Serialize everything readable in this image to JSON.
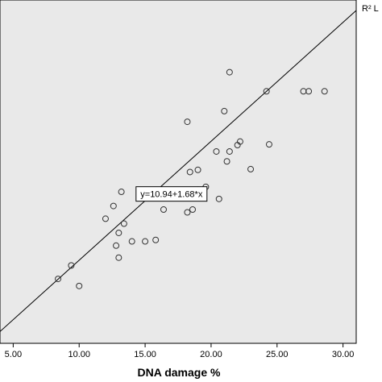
{
  "chart_data": {
    "type": "scatter",
    "title": "",
    "xlabel": "DNA damage %",
    "ylabel": "",
    "xlim": [
      4.0,
      31.0
    ],
    "x_ticks": [
      "5.00",
      "10.00",
      "15.00",
      "20.00",
      "25.00",
      "30.00"
    ],
    "x_tick_values": [
      5,
      10,
      15,
      20,
      25,
      30
    ],
    "ylim": [
      16.0,
      64.5
    ],
    "grid": false,
    "plot_background": "#e9e9e9",
    "marker_color": "#333333",
    "fit_line": {
      "intercept": 10.94,
      "slope": 1.68,
      "equation_label": "y=10.94+1.68*x",
      "label_anchor": [
        17.0,
        37.1
      ]
    },
    "corner_label": "R² L",
    "points": [
      {
        "x": 8.4,
        "y": 25.1
      },
      {
        "x": 9.4,
        "y": 27.0
      },
      {
        "x": 10.0,
        "y": 24.1
      },
      {
        "x": 12.0,
        "y": 33.6
      },
      {
        "x": 12.6,
        "y": 35.4
      },
      {
        "x": 12.8,
        "y": 29.8
      },
      {
        "x": 13.0,
        "y": 31.6
      },
      {
        "x": 13.0,
        "y": 28.1
      },
      {
        "x": 13.2,
        "y": 37.4
      },
      {
        "x": 13.4,
        "y": 32.9
      },
      {
        "x": 14.0,
        "y": 30.4
      },
      {
        "x": 15.0,
        "y": 30.4
      },
      {
        "x": 15.8,
        "y": 30.6
      },
      {
        "x": 16.4,
        "y": 34.9
      },
      {
        "x": 18.2,
        "y": 47.3
      },
      {
        "x": 18.2,
        "y": 34.5
      },
      {
        "x": 18.4,
        "y": 40.2
      },
      {
        "x": 18.6,
        "y": 34.9
      },
      {
        "x": 19.0,
        "y": 37.7
      },
      {
        "x": 19.0,
        "y": 40.5
      },
      {
        "x": 19.6,
        "y": 38.1
      },
      {
        "x": 20.4,
        "y": 43.1
      },
      {
        "x": 20.6,
        "y": 36.4
      },
      {
        "x": 21.0,
        "y": 48.8
      },
      {
        "x": 21.2,
        "y": 41.7
      },
      {
        "x": 21.4,
        "y": 43.1
      },
      {
        "x": 21.4,
        "y": 54.3
      },
      {
        "x": 22.0,
        "y": 44.0
      },
      {
        "x": 22.2,
        "y": 44.5
      },
      {
        "x": 23.0,
        "y": 40.6
      },
      {
        "x": 24.2,
        "y": 51.6
      },
      {
        "x": 24.4,
        "y": 44.1
      },
      {
        "x": 27.0,
        "y": 51.6
      },
      {
        "x": 27.4,
        "y": 51.6
      },
      {
        "x": 28.6,
        "y": 51.6
      }
    ]
  }
}
